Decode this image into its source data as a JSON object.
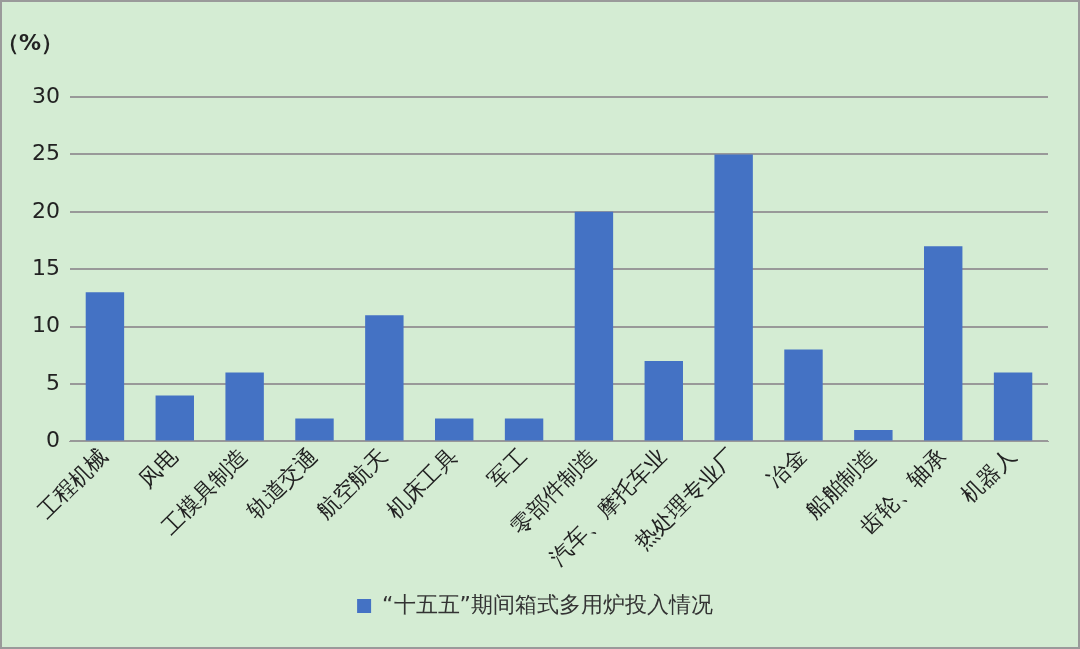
{
  "chart_data": {
    "type": "bar",
    "ylabel": "（%）",
    "categories": [
      "工程机械",
      "风电",
      "工模具制造",
      "轨道交通",
      "航空航天",
      "机床工具",
      "军工",
      "零部件制造",
      "汽车、摩托车业",
      "热处理专业厂",
      "冶金",
      "船舶制造",
      "齿轮、轴承",
      "机器人"
    ],
    "series": [
      {
        "name": "“十五五”期间箱式多用炉投入情况",
        "color": "#4472c4",
        "values": [
          13,
          4,
          6,
          2,
          11,
          2,
          2,
          20,
          7,
          25,
          8,
          1,
          17,
          6
        ]
      }
    ],
    "ylim": [
      0,
      30
    ],
    "yticks": [
      0,
      5,
      10,
      15,
      20,
      25,
      30
    ],
    "grid": "y",
    "legend": "bottom"
  }
}
